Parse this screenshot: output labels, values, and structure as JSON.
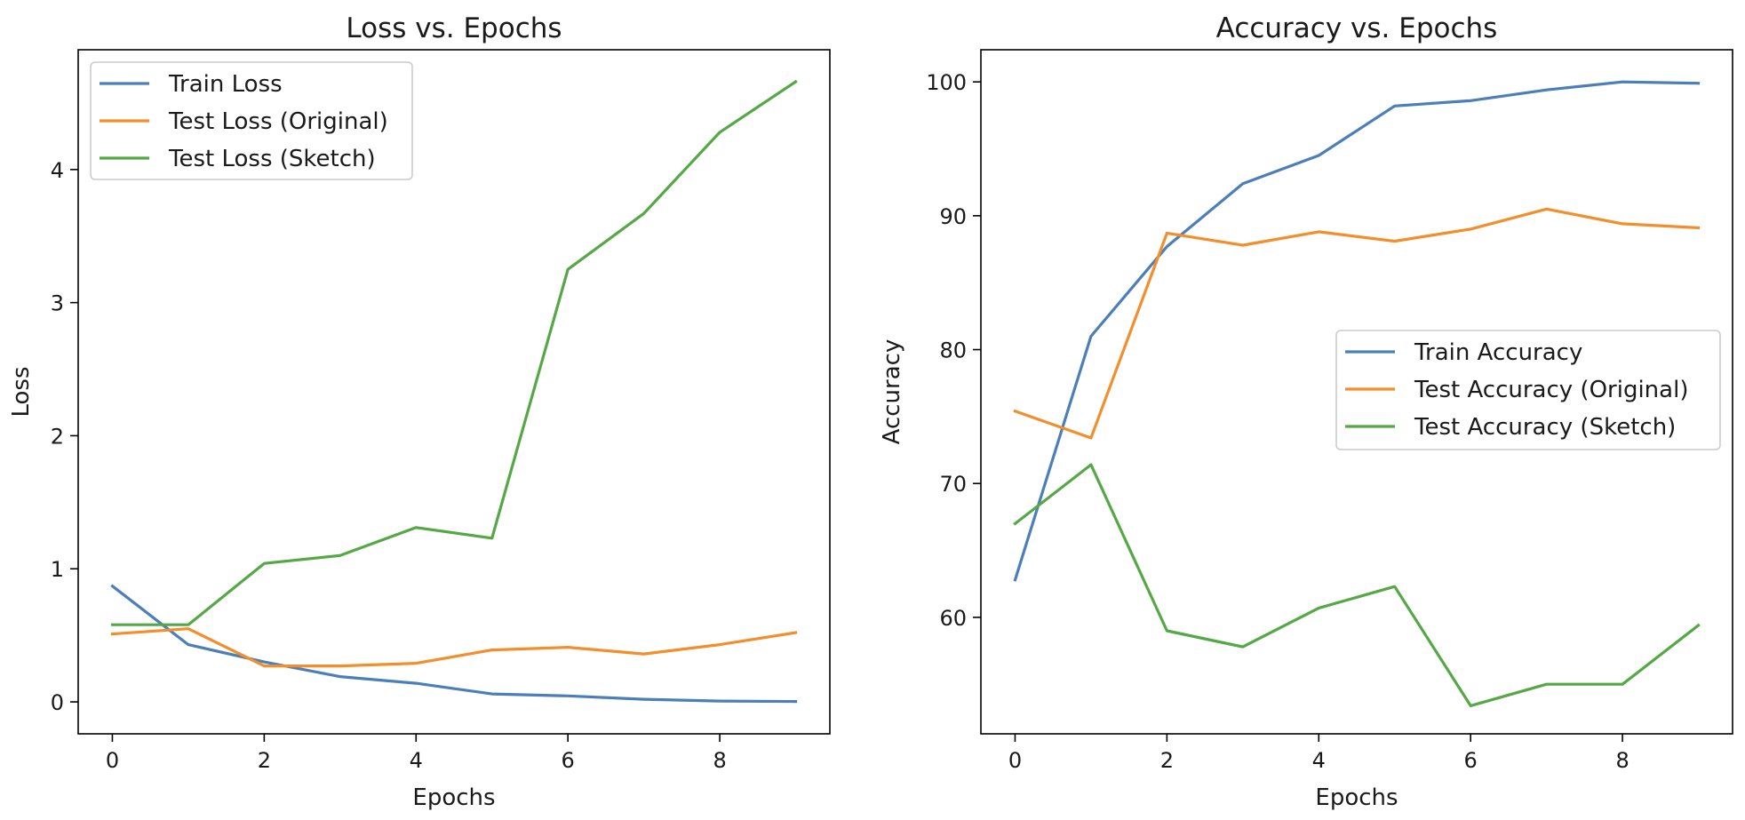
{
  "chart_data": [
    {
      "type": "line",
      "title": "Loss vs. Epochs",
      "xlabel": "Epochs",
      "ylabel": "Loss",
      "xlim": [
        -0.45,
        9.45
      ],
      "ylim": [
        -0.24,
        4.9
      ],
      "xticks": [
        0,
        2,
        4,
        6,
        8
      ],
      "yticks": [
        0,
        1,
        2,
        3,
        4
      ],
      "grid": false,
      "legend_position": "upper-left",
      "x": [
        0,
        1,
        2,
        3,
        4,
        5,
        6,
        7,
        8,
        9
      ],
      "series": [
        {
          "name": "Train Loss",
          "color": "#4c7fb8",
          "values": [
            0.87,
            0.43,
            0.3,
            0.19,
            0.14,
            0.06,
            0.045,
            0.02,
            0.006,
            0.003
          ]
        },
        {
          "name": "Test Loss (Original)",
          "color": "#f28e2b",
          "values": [
            0.51,
            0.55,
            0.27,
            0.27,
            0.29,
            0.39,
            0.41,
            0.36,
            0.43,
            0.52
          ]
        },
        {
          "name": "Test Loss (Sketch)",
          "color": "#55a846",
          "values": [
            0.58,
            0.58,
            1.04,
            1.1,
            1.31,
            1.23,
            3.25,
            3.67,
            4.28,
            4.66
          ]
        }
      ]
    },
    {
      "type": "line",
      "title": "Accuracy vs. Epochs",
      "xlabel": "Epochs",
      "ylabel": "Accuracy",
      "xlim": [
        -0.45,
        9.45
      ],
      "ylim": [
        51.3,
        102.4
      ],
      "xticks": [
        0,
        2,
        4,
        6,
        8
      ],
      "yticks": [
        60,
        70,
        80,
        90,
        100
      ],
      "grid": false,
      "legend_position": "center-right",
      "x": [
        0,
        1,
        2,
        3,
        4,
        5,
        6,
        7,
        8,
        9
      ],
      "series": [
        {
          "name": "Train Accuracy",
          "color": "#4c7fb8",
          "values": [
            62.8,
            81.0,
            87.7,
            92.4,
            94.5,
            98.2,
            98.6,
            99.4,
            100.0,
            99.9
          ]
        },
        {
          "name": "Test Accuracy (Original)",
          "color": "#f28e2b",
          "values": [
            75.4,
            73.4,
            88.7,
            87.8,
            88.8,
            88.1,
            89.0,
            90.5,
            89.4,
            89.1
          ]
        },
        {
          "name": "Test Accuracy (Sketch)",
          "color": "#55a846",
          "values": [
            67.0,
            71.4,
            59.0,
            57.8,
            60.7,
            62.3,
            53.4,
            55.0,
            55.0,
            59.4
          ]
        }
      ]
    }
  ]
}
